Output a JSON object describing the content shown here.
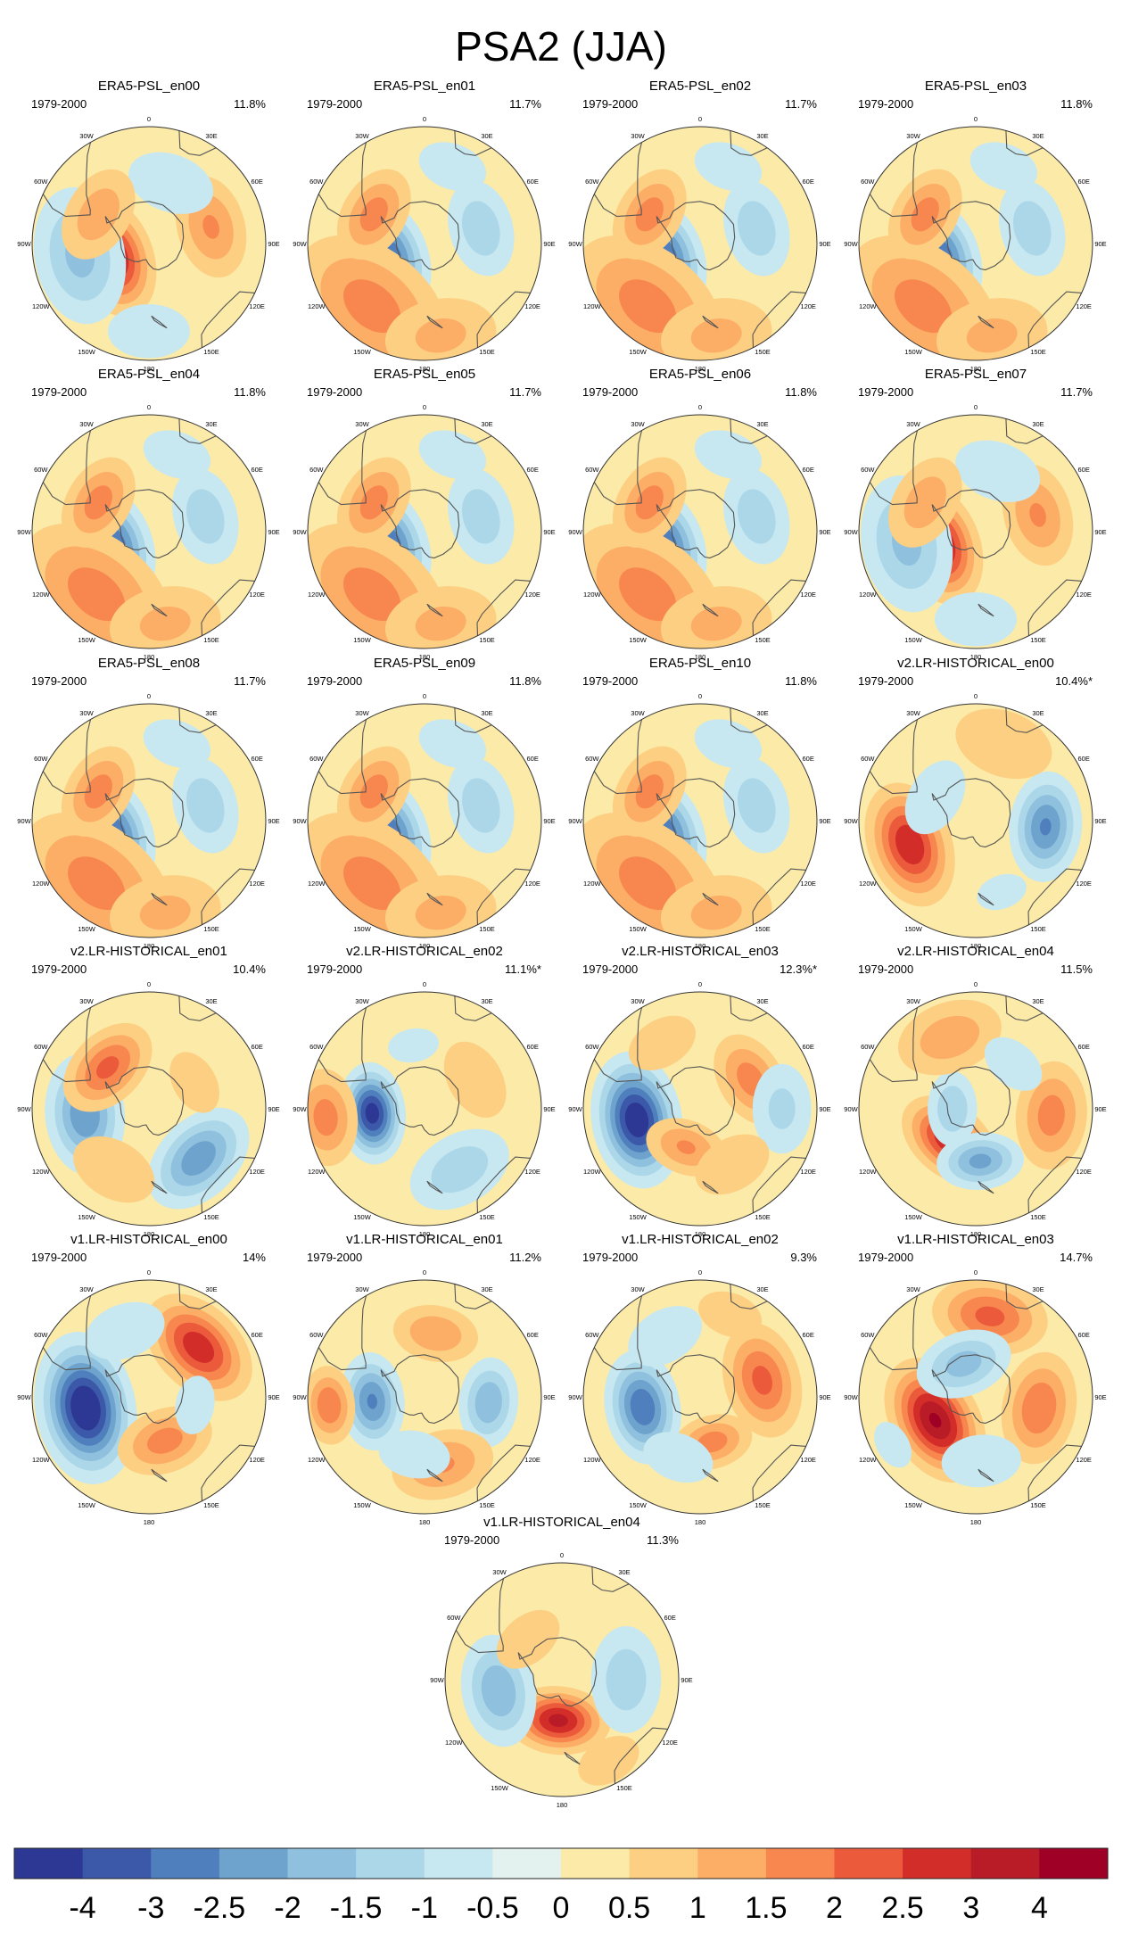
{
  "chart_data": {
    "type": "polar-contour-map",
    "title": "PSA2 (JJA)",
    "period": "1979-2000",
    "lon_labels": [
      "0",
      "30E",
      "60E",
      "90E",
      "120E",
      "150E",
      "180",
      "150W",
      "120W",
      "90W",
      "60W",
      "30W"
    ],
    "colorbar": {
      "labels": [
        "-4",
        "-3",
        "-2.5",
        "-2",
        "-1.5",
        "-1",
        "-0.5",
        "0",
        "0.5",
        "1",
        "1.5",
        "2",
        "2.5",
        "3",
        "4"
      ],
      "colors": [
        "#2c3893",
        "#3c58a8",
        "#4f7fbc",
        "#6ea3cd",
        "#8fc0de",
        "#abd7e9",
        "#c7e8f1",
        "#e3f2ee",
        "#fbeaa8",
        "#fdcf82",
        "#fcad66",
        "#f7874e",
        "#ea5a3b",
        "#d32d29",
        "#b91c27",
        "#9e0026"
      ]
    },
    "panels": [
      {
        "name": "ERA5-PSL_en00",
        "pct": "11.8%",
        "anoms": [
          {
            "lon": -110,
            "r": 0.33,
            "v": 3.2,
            "s": 0.19
          },
          {
            "lon": -100,
            "r": 0.6,
            "v": -1.7,
            "s": 0.26
          },
          {
            "lon": 75,
            "r": 0.55,
            "v": 1.6,
            "s": 0.2
          },
          {
            "lon": 20,
            "r": 0.55,
            "v": -1.0,
            "s": 0.22
          },
          {
            "lon": -60,
            "r": 0.5,
            "v": 1.4,
            "s": 0.2
          },
          {
            "lon": 180,
            "r": 0.75,
            "v": -0.8,
            "s": 0.25
          }
        ]
      },
      {
        "name": "ERA5-PSL_en01",
        "pct": "11.7%",
        "anoms": [
          {
            "lon": -110,
            "r": 0.33,
            "v": -3.0,
            "s": 0.19
          },
          {
            "lon": -140,
            "r": 0.7,
            "v": 1.8,
            "s": 0.32
          },
          {
            "lon": 75,
            "r": 0.5,
            "v": -1.4,
            "s": 0.2
          },
          {
            "lon": -60,
            "r": 0.5,
            "v": 1.8,
            "s": 0.18
          },
          {
            "lon": 170,
            "r": 0.8,
            "v": 1.2,
            "s": 0.25
          },
          {
            "lon": 20,
            "r": 0.7,
            "v": -0.7,
            "s": 0.25
          }
        ]
      },
      {
        "name": "ERA5-PSL_en02",
        "pct": "11.7%",
        "anoms": [
          {
            "lon": -110,
            "r": 0.33,
            "v": -3.0,
            "s": 0.19
          },
          {
            "lon": -140,
            "r": 0.7,
            "v": 1.8,
            "s": 0.32
          },
          {
            "lon": 75,
            "r": 0.5,
            "v": -1.4,
            "s": 0.2
          },
          {
            "lon": -60,
            "r": 0.5,
            "v": 1.8,
            "s": 0.18
          },
          {
            "lon": 170,
            "r": 0.8,
            "v": 1.2,
            "s": 0.25
          },
          {
            "lon": 20,
            "r": 0.7,
            "v": -0.7,
            "s": 0.25
          }
        ]
      },
      {
        "name": "ERA5-PSL_en03",
        "pct": "11.8%",
        "anoms": [
          {
            "lon": -110,
            "r": 0.33,
            "v": -3.0,
            "s": 0.19
          },
          {
            "lon": -140,
            "r": 0.7,
            "v": 1.8,
            "s": 0.32
          },
          {
            "lon": 75,
            "r": 0.5,
            "v": -1.4,
            "s": 0.2
          },
          {
            "lon": -60,
            "r": 0.5,
            "v": 1.8,
            "s": 0.18
          },
          {
            "lon": 170,
            "r": 0.8,
            "v": 1.2,
            "s": 0.25
          },
          {
            "lon": 20,
            "r": 0.7,
            "v": -0.7,
            "s": 0.25
          }
        ]
      },
      {
        "name": "ERA5-PSL_en04",
        "pct": "11.8%",
        "anoms": [
          {
            "lon": -110,
            "r": 0.33,
            "v": -3.0,
            "s": 0.19
          },
          {
            "lon": -140,
            "r": 0.7,
            "v": 1.8,
            "s": 0.32
          },
          {
            "lon": 75,
            "r": 0.5,
            "v": -1.4,
            "s": 0.2
          },
          {
            "lon": -60,
            "r": 0.5,
            "v": 1.8,
            "s": 0.18
          },
          {
            "lon": 170,
            "r": 0.8,
            "v": 1.2,
            "s": 0.25
          },
          {
            "lon": 20,
            "r": 0.7,
            "v": -0.7,
            "s": 0.25
          }
        ]
      },
      {
        "name": "ERA5-PSL_en05",
        "pct": "11.7%",
        "anoms": [
          {
            "lon": -110,
            "r": 0.33,
            "v": -3.0,
            "s": 0.19
          },
          {
            "lon": -140,
            "r": 0.7,
            "v": 1.8,
            "s": 0.32
          },
          {
            "lon": 75,
            "r": 0.5,
            "v": -1.4,
            "s": 0.2
          },
          {
            "lon": -60,
            "r": 0.5,
            "v": 1.8,
            "s": 0.18
          },
          {
            "lon": 170,
            "r": 0.8,
            "v": 1.2,
            "s": 0.25
          },
          {
            "lon": 20,
            "r": 0.7,
            "v": -0.7,
            "s": 0.25
          }
        ]
      },
      {
        "name": "ERA5-PSL_en06",
        "pct": "11.8%",
        "anoms": [
          {
            "lon": -110,
            "r": 0.33,
            "v": -3.0,
            "s": 0.19
          },
          {
            "lon": -140,
            "r": 0.7,
            "v": 1.8,
            "s": 0.32
          },
          {
            "lon": 75,
            "r": 0.5,
            "v": -1.4,
            "s": 0.2
          },
          {
            "lon": -60,
            "r": 0.5,
            "v": 1.8,
            "s": 0.18
          },
          {
            "lon": 170,
            "r": 0.8,
            "v": 1.2,
            "s": 0.25
          },
          {
            "lon": 20,
            "r": 0.7,
            "v": -0.7,
            "s": 0.25
          }
        ]
      },
      {
        "name": "ERA5-PSL_en07",
        "pct": "11.7%",
        "anoms": [
          {
            "lon": -110,
            "r": 0.33,
            "v": 3.2,
            "s": 0.19
          },
          {
            "lon": -100,
            "r": 0.6,
            "v": -1.7,
            "s": 0.26
          },
          {
            "lon": 75,
            "r": 0.55,
            "v": 1.6,
            "s": 0.2
          },
          {
            "lon": 20,
            "r": 0.55,
            "v": -1.0,
            "s": 0.22
          },
          {
            "lon": -60,
            "r": 0.5,
            "v": 1.4,
            "s": 0.2
          },
          {
            "lon": 180,
            "r": 0.75,
            "v": -0.8,
            "s": 0.25
          }
        ]
      },
      {
        "name": "ERA5-PSL_en08",
        "pct": "11.7%",
        "anoms": [
          {
            "lon": -110,
            "r": 0.33,
            "v": -3.0,
            "s": 0.19
          },
          {
            "lon": -140,
            "r": 0.7,
            "v": 1.8,
            "s": 0.32
          },
          {
            "lon": 75,
            "r": 0.5,
            "v": -1.4,
            "s": 0.2
          },
          {
            "lon": -60,
            "r": 0.5,
            "v": 1.8,
            "s": 0.18
          },
          {
            "lon": 170,
            "r": 0.8,
            "v": 1.2,
            "s": 0.25
          },
          {
            "lon": 20,
            "r": 0.7,
            "v": -0.7,
            "s": 0.25
          }
        ]
      },
      {
        "name": "ERA5-PSL_en09",
        "pct": "11.8%",
        "anoms": [
          {
            "lon": -110,
            "r": 0.33,
            "v": -3.0,
            "s": 0.19
          },
          {
            "lon": -140,
            "r": 0.7,
            "v": 1.8,
            "s": 0.32
          },
          {
            "lon": 75,
            "r": 0.5,
            "v": -1.4,
            "s": 0.2
          },
          {
            "lon": -60,
            "r": 0.5,
            "v": 1.8,
            "s": 0.18
          },
          {
            "lon": 170,
            "r": 0.8,
            "v": 1.2,
            "s": 0.25
          },
          {
            "lon": 20,
            "r": 0.7,
            "v": -0.7,
            "s": 0.25
          }
        ]
      },
      {
        "name": "ERA5-PSL_en10",
        "pct": "11.8%",
        "anoms": [
          {
            "lon": -110,
            "r": 0.33,
            "v": -3.0,
            "s": 0.19
          },
          {
            "lon": -140,
            "r": 0.7,
            "v": 1.8,
            "s": 0.32
          },
          {
            "lon": 75,
            "r": 0.5,
            "v": -1.4,
            "s": 0.2
          },
          {
            "lon": -60,
            "r": 0.5,
            "v": 1.8,
            "s": 0.18
          },
          {
            "lon": 170,
            "r": 0.8,
            "v": 1.2,
            "s": 0.25
          },
          {
            "lon": 20,
            "r": 0.7,
            "v": -0.7,
            "s": 0.25
          }
        ]
      },
      {
        "name": "v2.LR-HISTORICAL_en00",
        "pct": "10.4%*",
        "anoms": [
          {
            "lon": -110,
            "r": 0.6,
            "v": 3.0,
            "s": 0.2
          },
          {
            "lon": 95,
            "r": 0.6,
            "v": -2.6,
            "s": 0.18
          },
          {
            "lon": -60,
            "r": 0.4,
            "v": -1.0,
            "s": 0.2
          },
          {
            "lon": 20,
            "r": 0.7,
            "v": 1.0,
            "s": 0.25
          },
          {
            "lon": 160,
            "r": 0.65,
            "v": -0.6,
            "s": 0.25
          }
        ]
      },
      {
        "name": "v2.LR-HISTORICAL_en01",
        "pct": "10.4%",
        "anoms": [
          {
            "lon": -95,
            "r": 0.55,
            "v": -2.5,
            "s": 0.2
          },
          {
            "lon": 135,
            "r": 0.6,
            "v": -2.4,
            "s": 0.2
          },
          {
            "lon": -45,
            "r": 0.5,
            "v": 2.2,
            "s": 0.18
          },
          {
            "lon": -150,
            "r": 0.6,
            "v": 1.0,
            "s": 0.22
          },
          {
            "lon": 60,
            "r": 0.45,
            "v": 0.8,
            "s": 0.2
          }
        ]
      },
      {
        "name": "v2.LR-HISTORICAL_en02",
        "pct": "11.1%*",
        "anoms": [
          {
            "lon": -95,
            "r": 0.45,
            "v": -3.8,
            "s": 0.15
          },
          {
            "lon": -95,
            "r": 0.85,
            "v": 1.8,
            "s": 0.18
          },
          {
            "lon": 150,
            "r": 0.6,
            "v": -1.4,
            "s": 0.22
          },
          {
            "lon": 60,
            "r": 0.5,
            "v": 0.8,
            "s": 0.25
          },
          {
            "lon": -10,
            "r": 0.55,
            "v": -0.6,
            "s": 0.25
          }
        ]
      },
      {
        "name": "v2.LR-HISTORICAL_en03",
        "pct": "12.3%*",
        "anoms": [
          {
            "lon": -100,
            "r": 0.55,
            "v": -4.0,
            "s": 0.2
          },
          {
            "lon": 60,
            "r": 0.5,
            "v": 1.8,
            "s": 0.18
          },
          {
            "lon": -160,
            "r": 0.35,
            "v": 1.6,
            "s": 0.16
          },
          {
            "lon": 90,
            "r": 0.7,
            "v": -1.2,
            "s": 0.2
          },
          {
            "lon": 150,
            "r": 0.55,
            "v": 1.0,
            "s": 0.2
          },
          {
            "lon": -30,
            "r": 0.65,
            "v": 0.8,
            "s": 0.22
          }
        ]
      },
      {
        "name": "v2.LR-HISTORICAL_en04",
        "pct": "11.5%",
        "anoms": [
          {
            "lon": -140,
            "r": 0.35,
            "v": 3.0,
            "s": 0.17
          },
          {
            "lon": 175,
            "r": 0.45,
            "v": -2.2,
            "s": 0.15
          },
          {
            "lon": 95,
            "r": 0.65,
            "v": 1.8,
            "s": 0.2
          },
          {
            "lon": -90,
            "r": 0.2,
            "v": -1.5,
            "s": 0.15
          },
          {
            "lon": -20,
            "r": 0.65,
            "v": 1.4,
            "s": 0.22
          },
          {
            "lon": 40,
            "r": 0.5,
            "v": -0.8,
            "s": 0.2
          }
        ]
      },
      {
        "name": "v1.LR-HISTORICAL_en00",
        "pct": "14%",
        "anoms": [
          {
            "lon": -100,
            "r": 0.55,
            "v": -4.2,
            "s": 0.22
          },
          {
            "lon": 45,
            "r": 0.6,
            "v": 2.9,
            "s": 0.2
          },
          {
            "lon": 160,
            "r": 0.4,
            "v": 1.8,
            "s": 0.18
          },
          {
            "lon": -20,
            "r": 0.6,
            "v": -0.8,
            "s": 0.25
          },
          {
            "lon": 100,
            "r": 0.4,
            "v": -0.8,
            "s": 0.18
          }
        ]
      },
      {
        "name": "v1.LR-HISTORICAL_en01",
        "pct": "11.2%",
        "anoms": [
          {
            "lon": -95,
            "r": 0.45,
            "v": -2.6,
            "s": 0.16
          },
          {
            "lon": -95,
            "r": 0.82,
            "v": 2.0,
            "s": 0.14
          },
          {
            "lon": 95,
            "r": 0.55,
            "v": -2.0,
            "s": 0.16
          },
          {
            "lon": 10,
            "r": 0.55,
            "v": 1.5,
            "s": 0.17
          },
          {
            "lon": 165,
            "r": 0.6,
            "v": 1.6,
            "s": 0.2
          },
          {
            "lon": -170,
            "r": 0.5,
            "v": -1.0,
            "s": 0.18
          }
        ]
      },
      {
        "name": "v1.LR-HISTORICAL_en02",
        "pct": "9.3%",
        "anoms": [
          {
            "lon": -100,
            "r": 0.5,
            "v": -3.0,
            "s": 0.18
          },
          {
            "lon": 75,
            "r": 0.55,
            "v": 2.2,
            "s": 0.2
          },
          {
            "lon": 165,
            "r": 0.4,
            "v": 1.8,
            "s": 0.15
          },
          {
            "lon": -160,
            "r": 0.55,
            "v": -1.0,
            "s": 0.18
          },
          {
            "lon": -30,
            "r": 0.6,
            "v": -1.0,
            "s": 0.2
          },
          {
            "lon": 20,
            "r": 0.75,
            "v": 0.8,
            "s": 0.2
          }
        ]
      },
      {
        "name": "v1.LR-HISTORICAL_en03",
        "pct": "14.7%",
        "anoms": [
          {
            "lon": -120,
            "r": 0.4,
            "v": 3.6,
            "s": 0.2
          },
          {
            "lon": 10,
            "r": 0.7,
            "v": 2.2,
            "s": 0.2
          },
          {
            "lon": 100,
            "r": 0.55,
            "v": 2.0,
            "s": 0.2
          },
          {
            "lon": -20,
            "r": 0.3,
            "v": -1.8,
            "s": 0.18
          },
          {
            "lon": 175,
            "r": 0.55,
            "v": -1.0,
            "s": 0.2
          },
          {
            "lon": -120,
            "r": 0.82,
            "v": -0.8,
            "s": 0.15
          }
        ]
      },
      {
        "name": "v1.LR-HISTORICAL_en04",
        "pct": "11.3%",
        "anoms": [
          {
            "lon": -175,
            "r": 0.35,
            "v": 3.2,
            "s": 0.16
          },
          {
            "lon": -100,
            "r": 0.55,
            "v": -2.0,
            "s": 0.2
          },
          {
            "lon": 90,
            "r": 0.55,
            "v": -1.4,
            "s": 0.22
          },
          {
            "lon": 150,
            "r": 0.8,
            "v": 0.8,
            "s": 0.2
          },
          {
            "lon": -40,
            "r": 0.45,
            "v": 1.0,
            "s": 0.18
          }
        ]
      }
    ]
  }
}
